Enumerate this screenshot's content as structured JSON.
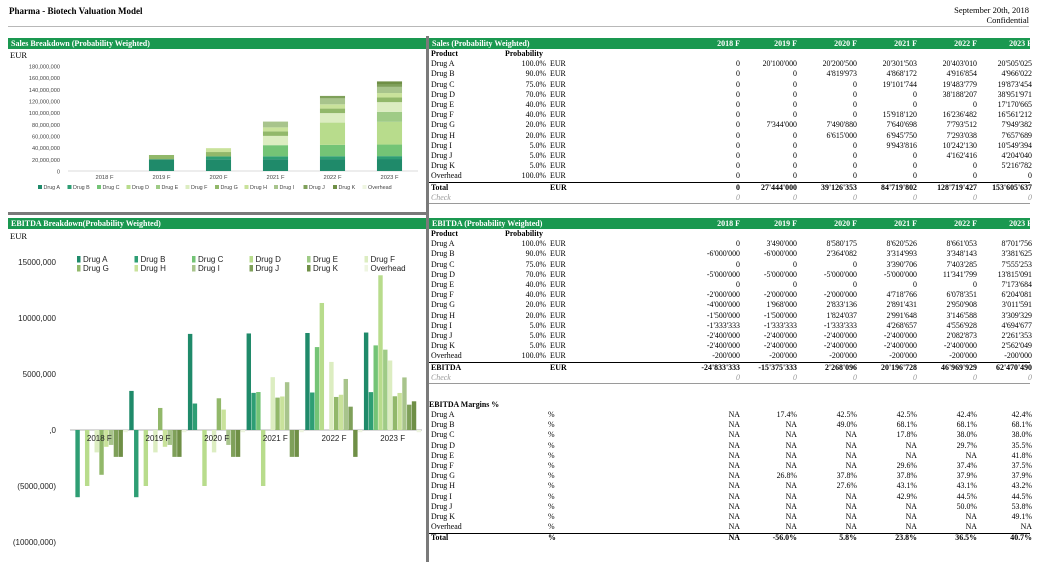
{
  "header": {
    "title": "Pharma - Biotech Valuation Model",
    "date": "September 20th, 2018",
    "confidential": "Confidential"
  },
  "colors": {
    "accent": "#1a9850",
    "drugs": [
      "#1f8a6a",
      "#2e9e74",
      "#74c476",
      "#b8dc8c",
      "#9fcb86",
      "#dcedc1",
      "#92b86a",
      "#c9e29b",
      "#a8c48c",
      "#7fa05a",
      "#6f8f46",
      "#eef5e0"
    ]
  },
  "sales_chart": {
    "title": "Sales Breakdown (Probability Weighted)",
    "unit": "EUR",
    "y_ticks": [
      "180,000,000",
      "160,000,000",
      "140,000,000",
      "120,000,000",
      "100,000,000",
      "80,000,000",
      "60,000,000",
      "40,000,000",
      "20,000,000",
      "0"
    ],
    "legend": [
      "Drug A",
      "Drug B",
      "Drug C",
      "Drug D",
      "Drug E",
      "Drug F",
      "Drug G",
      "Drug H",
      "Drug I",
      "Drug J",
      "Drug K",
      "Overhead"
    ]
  },
  "ebitda_chart": {
    "title": "EBITDA Breakdown(Probability Weighted)",
    "unit": "EUR",
    "y_ticks": [
      "15000,000",
      "10000,000",
      "5000,000",
      ",0",
      "(5000,000)",
      "(10000,000)"
    ],
    "legend": [
      "Drug A",
      "Drug B",
      "Drug C",
      "Drug D",
      "Drug E",
      "Drug F",
      "Drug G",
      "Drug H",
      "Drug I",
      "Drug J",
      "Drug K",
      "Overhead"
    ]
  },
  "years": [
    "2018 F",
    "2019 F",
    "2020 F",
    "2021 F",
    "2022 F",
    "2023 F"
  ],
  "sales_table": {
    "title": "Sales (Probability Weighted)",
    "col_product": "Product",
    "col_probability": "Probability",
    "rows": [
      {
        "product": "Drug A",
        "prob": "100.0%",
        "unit": "EUR",
        "values": [
          "0",
          "20'100'000",
          "20'200'500",
          "20'301'503",
          "20'403'010",
          "20'505'025"
        ]
      },
      {
        "product": "Drug B",
        "prob": "90.0%",
        "unit": "EUR",
        "values": [
          "0",
          "0",
          "4'819'973",
          "4'868'172",
          "4'916'854",
          "4'966'022"
        ]
      },
      {
        "product": "Drug C",
        "prob": "75.0%",
        "unit": "EUR",
        "values": [
          "0",
          "0",
          "0",
          "19'101'744",
          "19'483'779",
          "19'873'454"
        ]
      },
      {
        "product": "Drug D",
        "prob": "70.0%",
        "unit": "EUR",
        "values": [
          "0",
          "0",
          "0",
          "0",
          "38'188'207",
          "38'951'971"
        ]
      },
      {
        "product": "Drug E",
        "prob": "40.0%",
        "unit": "EUR",
        "values": [
          "0",
          "0",
          "0",
          "0",
          "0",
          "17'170'665"
        ]
      },
      {
        "product": "Drug F",
        "prob": "40.0%",
        "unit": "EUR",
        "values": [
          "0",
          "0",
          "0",
          "15'918'120",
          "16'236'482",
          "16'561'212"
        ]
      },
      {
        "product": "Drug G",
        "prob": "20.0%",
        "unit": "EUR",
        "values": [
          "0",
          "7'344'000",
          "7'490'880",
          "7'640'698",
          "7'793'512",
          "7'949'382"
        ]
      },
      {
        "product": "Drug H",
        "prob": "20.0%",
        "unit": "EUR",
        "values": [
          "0",
          "0",
          "6'615'000",
          "6'945'750",
          "7'293'038",
          "7'657'689"
        ]
      },
      {
        "product": "Drug I",
        "prob": "5.0%",
        "unit": "EUR",
        "values": [
          "0",
          "0",
          "0",
          "9'943'816",
          "10'242'130",
          "10'549'394"
        ]
      },
      {
        "product": "Drug J",
        "prob": "5.0%",
        "unit": "EUR",
        "values": [
          "0",
          "0",
          "0",
          "0",
          "4'162'416",
          "4'204'040"
        ]
      },
      {
        "product": "Drug K",
        "prob": "5.0%",
        "unit": "EUR",
        "values": [
          "0",
          "0",
          "0",
          "0",
          "0",
          "5'216'782"
        ]
      },
      {
        "product": "Overhead",
        "prob": "100.0%",
        "unit": "EUR",
        "values": [
          "0",
          "0",
          "0",
          "0",
          "0",
          "0"
        ]
      }
    ],
    "total": {
      "label": "Total",
      "unit": "EUR",
      "values": [
        "0",
        "27'444'000",
        "39'126'353",
        "84'719'802",
        "128'719'427",
        "153'605'637"
      ]
    },
    "check": {
      "label": "Check",
      "values": [
        "0",
        "0",
        "0",
        "0",
        "0",
        "0"
      ]
    }
  },
  "ebitda_table": {
    "title": "EBITDA (Probability Weighted)",
    "col_product": "Product",
    "col_probability": "Probability",
    "rows": [
      {
        "product": "Drug A",
        "prob": "100.0%",
        "unit": "EUR",
        "values": [
          "0",
          "3'490'000",
          "8'580'175",
          "8'620'526",
          "8'661'053",
          "8'701'756"
        ]
      },
      {
        "product": "Drug B",
        "prob": "90.0%",
        "unit": "EUR",
        "values": [
          "-6'000'000",
          "-6'000'000",
          "2'364'082",
          "3'314'993",
          "3'348'143",
          "3'381'625"
        ]
      },
      {
        "product": "Drug C",
        "prob": "75.0%",
        "unit": "EUR",
        "values": [
          "0",
          "0",
          "0",
          "3'390'706",
          "7'403'285",
          "7'555'253"
        ]
      },
      {
        "product": "Drug D",
        "prob": "70.0%",
        "unit": "EUR",
        "values": [
          "-5'000'000",
          "-5'000'000",
          "-5'000'000",
          "-5'000'000",
          "11'341'799",
          "13'815'091"
        ]
      },
      {
        "product": "Drug E",
        "prob": "40.0%",
        "unit": "EUR",
        "values": [
          "0",
          "0",
          "0",
          "0",
          "0",
          "7'173'684"
        ]
      },
      {
        "product": "Drug F",
        "prob": "40.0%",
        "unit": "EUR",
        "values": [
          "-2'000'000",
          "-2'000'000",
          "-2'000'000",
          "4'718'766",
          "6'078'351",
          "6'204'081"
        ]
      },
      {
        "product": "Drug G",
        "prob": "20.0%",
        "unit": "EUR",
        "values": [
          "-4'000'000",
          "1'968'000",
          "2'833'136",
          "2'891'431",
          "2'950'908",
          "3'011'591"
        ]
      },
      {
        "product": "Drug H",
        "prob": "20.0%",
        "unit": "EUR",
        "values": [
          "-1'500'000",
          "-1'500'000",
          "1'824'037",
          "2'991'648",
          "3'146'588",
          "3'309'329"
        ]
      },
      {
        "product": "Drug I",
        "prob": "5.0%",
        "unit": "EUR",
        "values": [
          "-1'333'333",
          "-1'333'333",
          "-1'333'333",
          "4'268'657",
          "4'556'928",
          "4'694'677"
        ]
      },
      {
        "product": "Drug J",
        "prob": "5.0%",
        "unit": "EUR",
        "values": [
          "-2'400'000",
          "-2'400'000",
          "-2'400'000",
          "-2'400'000",
          "2'082'873",
          "2'261'353"
        ]
      },
      {
        "product": "Drug K",
        "prob": "5.0%",
        "unit": "EUR",
        "values": [
          "-2'400'000",
          "-2'400'000",
          "-2'400'000",
          "-2'400'000",
          "-2'400'000",
          "2'562'049"
        ]
      },
      {
        "product": "Overhead",
        "prob": "100.0%",
        "unit": "EUR",
        "values": [
          "-200'000",
          "-200'000",
          "-200'000",
          "-200'000",
          "-200'000",
          "-200'000"
        ]
      }
    ],
    "total": {
      "label": "EBITDA",
      "unit": "EUR",
      "values": [
        "-24'833'333",
        "-15'375'333",
        "2'268'096",
        "20'196'728",
        "46'969'929",
        "62'470'490"
      ]
    },
    "check": {
      "label": "Check",
      "values": [
        "0",
        "0",
        "0",
        "0",
        "0",
        "0"
      ]
    }
  },
  "margins_table": {
    "title": "EBITDA Margins %",
    "rows": [
      {
        "product": "Drug A",
        "unit": "%",
        "values": [
          "NA",
          "17.4%",
          "42.5%",
          "42.5%",
          "42.4%",
          "42.4%"
        ]
      },
      {
        "product": "Drug B",
        "unit": "%",
        "values": [
          "NA",
          "NA",
          "49.0%",
          "68.1%",
          "68.1%",
          "68.1%"
        ]
      },
      {
        "product": "Drug C",
        "unit": "%",
        "values": [
          "NA",
          "NA",
          "NA",
          "17.8%",
          "38.0%",
          "38.0%"
        ]
      },
      {
        "product": "Drug D",
        "unit": "%",
        "values": [
          "NA",
          "NA",
          "NA",
          "NA",
          "29.7%",
          "35.5%"
        ]
      },
      {
        "product": "Drug E",
        "unit": "%",
        "values": [
          "NA",
          "NA",
          "NA",
          "NA",
          "NA",
          "41.8%"
        ]
      },
      {
        "product": "Drug F",
        "unit": "%",
        "values": [
          "NA",
          "NA",
          "NA",
          "29.6%",
          "37.4%",
          "37.5%"
        ]
      },
      {
        "product": "Drug G",
        "unit": "%",
        "values": [
          "NA",
          "26.8%",
          "37.8%",
          "37.8%",
          "37.9%",
          "37.9%"
        ]
      },
      {
        "product": "Drug H",
        "unit": "%",
        "values": [
          "NA",
          "NA",
          "27.6%",
          "43.1%",
          "43.1%",
          "43.2%"
        ]
      },
      {
        "product": "Drug I",
        "unit": "%",
        "values": [
          "NA",
          "NA",
          "NA",
          "42.9%",
          "44.5%",
          "44.5%"
        ]
      },
      {
        "product": "Drug J",
        "unit": "%",
        "values": [
          "NA",
          "NA",
          "NA",
          "NA",
          "50.0%",
          "53.8%"
        ]
      },
      {
        "product": "Drug K",
        "unit": "%",
        "values": [
          "NA",
          "NA",
          "NA",
          "NA",
          "NA",
          "49.1%"
        ]
      },
      {
        "product": "Overhead",
        "unit": "%",
        "values": [
          "NA",
          "NA",
          "NA",
          "NA",
          "NA",
          "NA"
        ]
      }
    ],
    "total": {
      "label": "Total",
      "unit": "%",
      "values": [
        "NA",
        "-56.0%",
        "5.8%",
        "23.8%",
        "36.5%",
        "40.7%"
      ]
    }
  },
  "chart_data": [
    {
      "type": "bar",
      "stacked": true,
      "title": "Sales Breakdown (Probability Weighted)",
      "ylabel": "EUR",
      "categories": [
        "2018 F",
        "2019 F",
        "2020 F",
        "2021 F",
        "2022 F",
        "2023 F"
      ],
      "ylim": [
        0,
        180000000
      ],
      "grid": false,
      "legend": "bottom",
      "series": [
        {
          "name": "Drug A",
          "values": [
            0,
            20100000,
            20200500,
            20301503,
            20403010,
            20505025
          ]
        },
        {
          "name": "Drug B",
          "values": [
            0,
            0,
            4819973,
            4868172,
            4916854,
            4966022
          ]
        },
        {
          "name": "Drug C",
          "values": [
            0,
            0,
            0,
            19101744,
            19483779,
            19873454
          ]
        },
        {
          "name": "Drug D",
          "values": [
            0,
            0,
            0,
            0,
            38188207,
            38951971
          ]
        },
        {
          "name": "Drug E",
          "values": [
            0,
            0,
            0,
            0,
            0,
            17170665
          ]
        },
        {
          "name": "Drug F",
          "values": [
            0,
            0,
            0,
            15918120,
            16236482,
            16561212
          ]
        },
        {
          "name": "Drug G",
          "values": [
            0,
            7344000,
            7490880,
            7640698,
            7793512,
            7949382
          ]
        },
        {
          "name": "Drug H",
          "values": [
            0,
            0,
            6615000,
            6945750,
            7293038,
            7657689
          ]
        },
        {
          "name": "Drug I",
          "values": [
            0,
            0,
            0,
            9943816,
            10242130,
            10549394
          ]
        },
        {
          "name": "Drug J",
          "values": [
            0,
            0,
            0,
            0,
            4162416,
            4204040
          ]
        },
        {
          "name": "Drug K",
          "values": [
            0,
            0,
            0,
            0,
            0,
            5216782
          ]
        },
        {
          "name": "Overhead",
          "values": [
            0,
            0,
            0,
            0,
            0,
            0
          ]
        }
      ]
    },
    {
      "type": "bar",
      "stacked": false,
      "title": "EBITDA Breakdown(Probability Weighted)",
      "ylabel": "EUR",
      "categories": [
        "2018 F",
        "2019 F",
        "2020 F",
        "2021 F",
        "2022 F",
        "2023 F"
      ],
      "ylim": [
        -10000000,
        15000000
      ],
      "grid": false,
      "legend": "top",
      "series": [
        {
          "name": "Drug A",
          "values": [
            0,
            3490000,
            8580175,
            8620526,
            8661053,
            8701756
          ]
        },
        {
          "name": "Drug B",
          "values": [
            -6000000,
            -6000000,
            2364082,
            3314993,
            3348143,
            3381625
          ]
        },
        {
          "name": "Drug C",
          "values": [
            0,
            0,
            0,
            3390706,
            7403285,
            7555253
          ]
        },
        {
          "name": "Drug D",
          "values": [
            -5000000,
            -5000000,
            -5000000,
            -5000000,
            11341799,
            13815091
          ]
        },
        {
          "name": "Drug E",
          "values": [
            0,
            0,
            0,
            0,
            0,
            7173684
          ]
        },
        {
          "name": "Drug F",
          "values": [
            -2000000,
            -2000000,
            -2000000,
            4718766,
            6078351,
            6204081
          ]
        },
        {
          "name": "Drug G",
          "values": [
            -4000000,
            1968000,
            2833136,
            2891431,
            2950908,
            3011591
          ]
        },
        {
          "name": "Drug H",
          "values": [
            -1500000,
            -1500000,
            1824037,
            2991648,
            3146588,
            3309329
          ]
        },
        {
          "name": "Drug I",
          "values": [
            -1333333,
            -1333333,
            -1333333,
            4268657,
            4556928,
            4694677
          ]
        },
        {
          "name": "Drug J",
          "values": [
            -2400000,
            -2400000,
            -2400000,
            -2400000,
            2082873,
            2261353
          ]
        },
        {
          "name": "Drug K",
          "values": [
            -2400000,
            -2400000,
            -2400000,
            -2400000,
            -2400000,
            2562049
          ]
        },
        {
          "name": "Overhead",
          "values": [
            -200000,
            -200000,
            -200000,
            -200000,
            -200000,
            -200000
          ]
        }
      ]
    }
  ]
}
